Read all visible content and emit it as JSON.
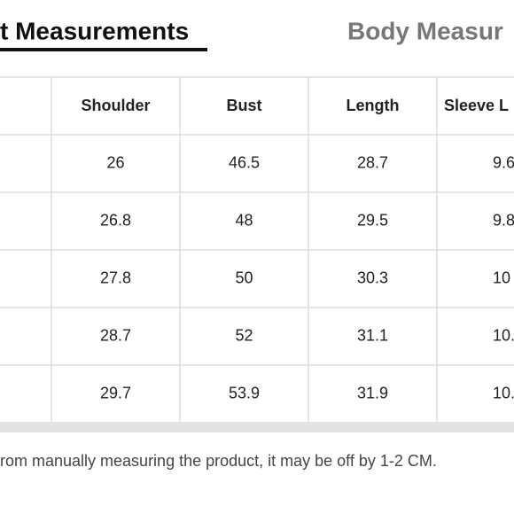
{
  "tabs": [
    "t Measurements",
    "Body Measur"
  ],
  "table": {
    "header": [
      "Shoulder",
      "Bust",
      "Length",
      "Sleeve L"
    ],
    "rows": [
      [
        "26",
        "46.5",
        "28.7",
        "9.6"
      ],
      [
        "26.8",
        "48",
        "29.5",
        "9.8"
      ],
      [
        "27.8",
        "50",
        "30.3",
        "10"
      ],
      [
        "28.7",
        "52",
        "31.1",
        "10."
      ],
      [
        "29.7",
        "53.9",
        "31.9",
        "10."
      ]
    ]
  },
  "footer": "rom manually measuring the product, it may be off by 1-2 CM."
}
